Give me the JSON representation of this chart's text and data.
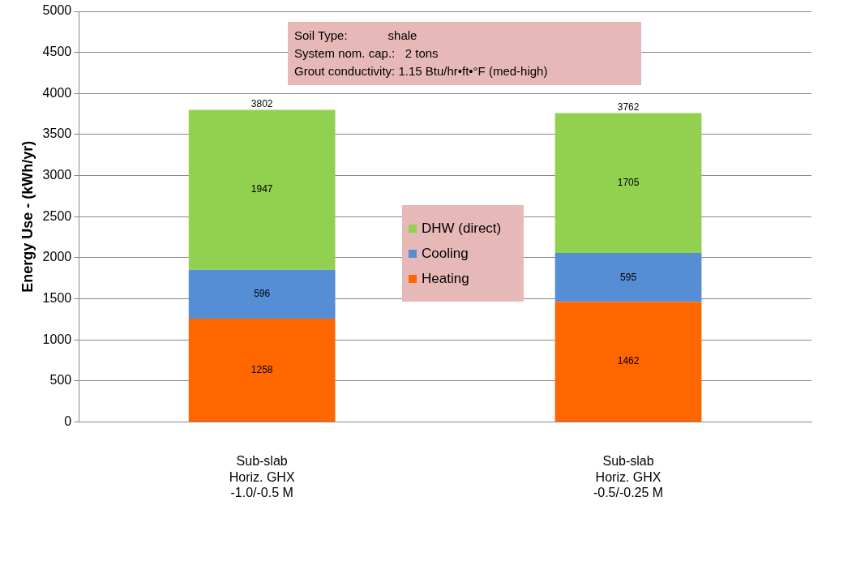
{
  "chart_data": {
    "type": "bar",
    "stacked": true,
    "categories": [
      "Sub-slab\nHoriz. GHX\n-1.0/-0.5 M",
      "Sub-slab\nHoriz. GHX\n-0.5/-0.25 M"
    ],
    "series": [
      {
        "name": "Heating",
        "color": "#ff6600",
        "values": [
          1258,
          1462
        ]
      },
      {
        "name": "Cooling",
        "color": "#558ed5",
        "values": [
          596,
          595
        ]
      },
      {
        "name": "DHW (direct)",
        "color": "#92d050",
        "values": [
          1947,
          1705
        ]
      }
    ],
    "totals": [
      "3802",
      "3762"
    ],
    "data_labels": true,
    "ylabel": "Energy Use - (kWh/yr)",
    "ylim": [
      0,
      5000
    ],
    "yticks": [
      0,
      500,
      1000,
      1500,
      2000,
      2500,
      3000,
      3500,
      4000,
      4500,
      5000
    ],
    "grid": "y",
    "legend": "center",
    "annotations": [
      "Soil Type:            shale",
      "System nom. cap.:   2 tons",
      "Grout conductivity: 1.15 Btu/hr•ft•°F (med-high)"
    ]
  }
}
